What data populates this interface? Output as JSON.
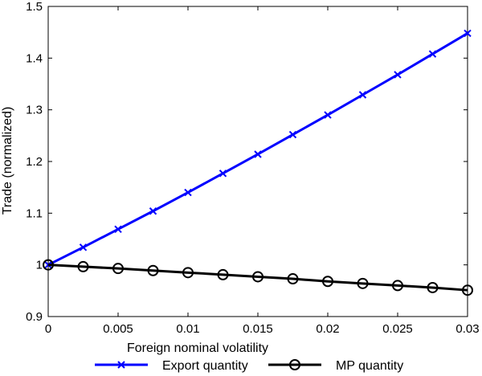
{
  "chart_data": {
    "type": "line",
    "xlabel": "Foreign nominal volatility",
    "ylabel": "Trade (normalized)",
    "xlim": [
      0,
      0.03
    ],
    "ylim": [
      0.9,
      1.5
    ],
    "x_ticks": [
      0,
      0.005,
      0.01,
      0.015,
      0.02,
      0.025,
      0.03
    ],
    "x_tick_labels": [
      "0",
      "0.005",
      "0.01",
      "0.015",
      "0.02",
      "0.025",
      "0.03"
    ],
    "y_ticks": [
      0.9,
      1.0,
      1.1,
      1.2,
      1.3,
      1.4,
      1.5
    ],
    "y_tick_labels": [
      "0.9",
      "1",
      "1.1",
      "1.2",
      "1.3",
      "1.4",
      "1.5"
    ],
    "grid": false,
    "legend_position": "bottom",
    "x": [
      0,
      0.0025,
      0.005,
      0.0075,
      0.01,
      0.0125,
      0.015,
      0.0175,
      0.02,
      0.0225,
      0.025,
      0.0275,
      0.03
    ],
    "series": [
      {
        "name": "Export quantity",
        "color": "#0000ff",
        "marker": "x",
        "values": [
          1.0,
          1.034,
          1.069,
          1.104,
          1.14,
          1.177,
          1.214,
          1.252,
          1.29,
          1.329,
          1.368,
          1.408,
          1.448
        ]
      },
      {
        "name": "MP quantity",
        "color": "#000000",
        "marker": "circle",
        "values": [
          1.0,
          0.9965,
          0.993,
          0.989,
          0.985,
          0.981,
          0.977,
          0.973,
          0.968,
          0.964,
          0.96,
          0.956,
          0.951
        ]
      }
    ]
  }
}
